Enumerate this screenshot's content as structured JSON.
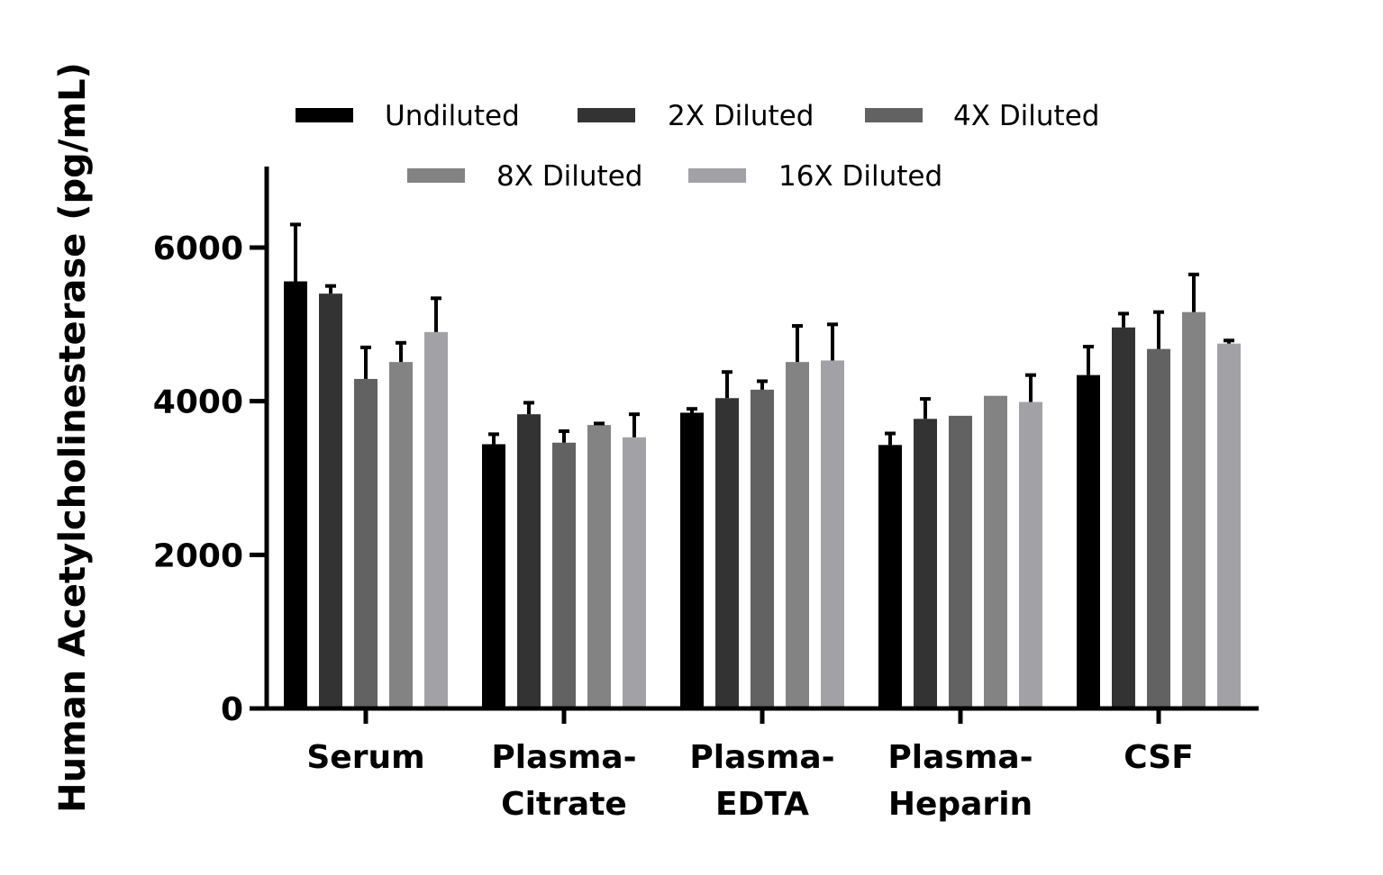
{
  "chart_data": {
    "type": "bar",
    "ylabel": "Human Acetylcholinesterase (pg/mL)",
    "xlabel": "",
    "ylim": [
      0,
      7000
    ],
    "yticks": [
      0,
      2000,
      4000,
      6000
    ],
    "categories": [
      [
        "Serum"
      ],
      [
        "Plasma-",
        "Citrate"
      ],
      [
        "Plasma-",
        "EDTA"
      ],
      [
        "Plasma-",
        "Heparin"
      ],
      [
        "CSF"
      ]
    ],
    "series": [
      {
        "name": "Undiluted",
        "color": "#000000",
        "values": [
          5560,
          3440,
          3850,
          3430,
          4340
        ],
        "errors": [
          740,
          130,
          50,
          150,
          370
        ]
      },
      {
        "name": "2X Diluted",
        "color": "#333333",
        "values": [
          5400,
          3830,
          4040,
          3770,
          4960
        ],
        "errors": [
          100,
          150,
          340,
          260,
          180
        ]
      },
      {
        "name": "4X Diluted",
        "color": "#626262",
        "values": [
          4290,
          3460,
          4150,
          3810,
          4680
        ],
        "errors": [
          410,
          150,
          110,
          0,
          480
        ]
      },
      {
        "name": "8X Diluted",
        "color": "#838383",
        "values": [
          4510,
          3690,
          4510,
          4070,
          5160
        ],
        "errors": [
          250,
          20,
          470,
          0,
          490
        ]
      },
      {
        "name": "16X Diluted",
        "color": "#a2a2a6",
        "values": [
          4900,
          3530,
          4530,
          3990,
          4750
        ],
        "errors": [
          440,
          300,
          470,
          350,
          40
        ]
      }
    ],
    "legend_position": "top",
    "grid": false
  }
}
